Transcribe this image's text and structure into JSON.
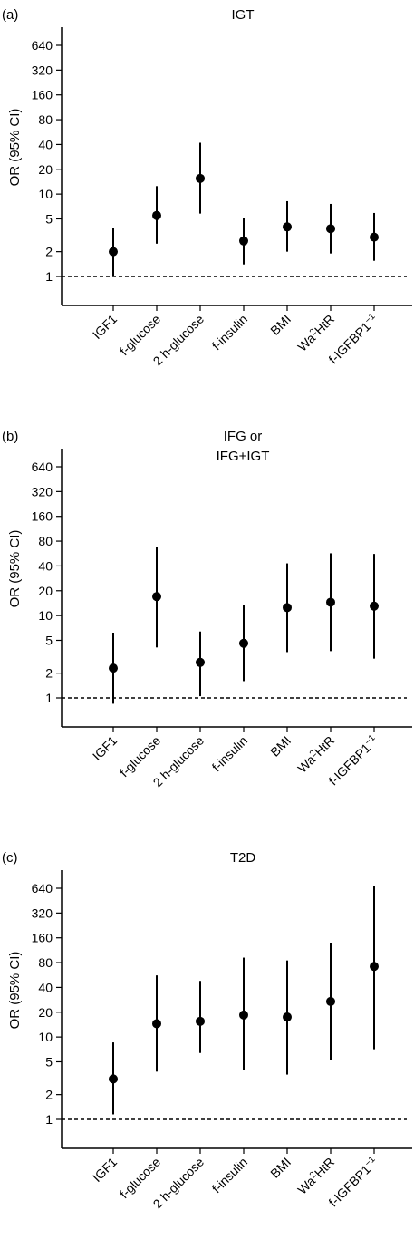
{
  "chart_data": [
    {
      "type": "scatter",
      "panel_label": "(a)",
      "title": [
        "IGT"
      ],
      "ylabel": "OR (95% CI)",
      "yscale": "log",
      "yticks": [
        1,
        2,
        5,
        10,
        20,
        40,
        80,
        160,
        320,
        640
      ],
      "reference_line": 1,
      "categories": [
        "IGF1",
        "f-glucose",
        "2 h-glucose",
        "f-insulin",
        "BMI",
        "Wa2HtR",
        "f-IGFBP1-1"
      ],
      "points": [
        {
          "or": 2.0,
          "lo": 1.0,
          "hi": 3.9
        },
        {
          "or": 5.5,
          "lo": 2.5,
          "hi": 12.5
        },
        {
          "or": 15.5,
          "lo": 5.8,
          "hi": 42
        },
        {
          "or": 2.7,
          "lo": 1.4,
          "hi": 5.1
        },
        {
          "or": 4.0,
          "lo": 2.0,
          "hi": 8.2
        },
        {
          "or": 3.8,
          "lo": 1.9,
          "hi": 7.6
        },
        {
          "or": 3.0,
          "lo": 1.55,
          "hi": 5.9
        }
      ]
    },
    {
      "type": "scatter",
      "panel_label": "(b)",
      "title": [
        "IFG or",
        "IFG+IGT"
      ],
      "ylabel": "OR (95% CI)",
      "yscale": "log",
      "yticks": [
        1,
        2,
        5,
        10,
        20,
        40,
        80,
        160,
        320,
        640
      ],
      "reference_line": 1,
      "categories": [
        "IGF1",
        "f-glucose",
        "2 h-glucose",
        "f-insulin",
        "BMI",
        "Wa2HtR",
        "f-IGFBP1-1"
      ],
      "points": [
        {
          "or": 2.3,
          "lo": 0.85,
          "hi": 6.2
        },
        {
          "or": 17,
          "lo": 4.1,
          "hi": 68
        },
        {
          "or": 2.7,
          "lo": 1.05,
          "hi": 6.4
        },
        {
          "or": 4.6,
          "lo": 1.6,
          "hi": 13.5
        },
        {
          "or": 12.5,
          "lo": 3.6,
          "hi": 43
        },
        {
          "or": 14.5,
          "lo": 3.7,
          "hi": 57
        },
        {
          "or": 13,
          "lo": 3.0,
          "hi": 56
        }
      ]
    },
    {
      "type": "scatter",
      "panel_label": "(c)",
      "title": [
        "T2D"
      ],
      "ylabel": "OR (95% CI)",
      "yscale": "log",
      "yticks": [
        1,
        2,
        5,
        10,
        20,
        40,
        80,
        160,
        320,
        640
      ],
      "reference_line": 1,
      "categories": [
        "IGF1",
        "f-glucose",
        "2 h-glucose",
        "f-insulin",
        "BMI",
        "Wa2HtR",
        "f-IGFBP1-1"
      ],
      "points": [
        {
          "or": 3.1,
          "lo": 1.15,
          "hi": 8.6
        },
        {
          "or": 14.5,
          "lo": 3.8,
          "hi": 56
        },
        {
          "or": 15.5,
          "lo": 6.4,
          "hi": 48
        },
        {
          "or": 18.5,
          "lo": 4.0,
          "hi": 92
        },
        {
          "or": 17.5,
          "lo": 3.5,
          "hi": 85
        },
        {
          "or": 27,
          "lo": 5.2,
          "hi": 140
        },
        {
          "or": 72,
          "lo": 7.1,
          "hi": 680
        }
      ]
    }
  ]
}
